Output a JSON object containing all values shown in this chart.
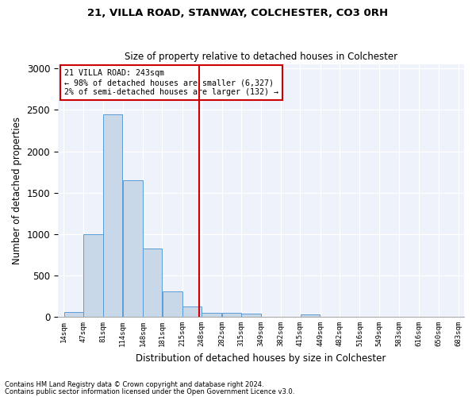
{
  "title1": "21, VILLA ROAD, STANWAY, COLCHESTER, CO3 0RH",
  "title2": "Size of property relative to detached houses in Colchester",
  "xlabel": "Distribution of detached houses by size in Colchester",
  "ylabel": "Number of detached properties",
  "footnote1": "Contains HM Land Registry data © Crown copyright and database right 2024.",
  "footnote2": "Contains public sector information licensed under the Open Government Licence v3.0.",
  "annotation_line1": "21 VILLA ROAD: 243sqm",
  "annotation_line2": "← 98% of detached houses are smaller (6,327)",
  "annotation_line3": "2% of semi-detached houses are larger (132) →",
  "property_size": 243,
  "bar_color": "#c8d8e8",
  "bar_edge_color": "#5b9bd5",
  "vline_color": "#cc0000",
  "annotation_box_color": "#cc0000",
  "background_color": "#eef2fb",
  "bin_edges": [
    14,
    47,
    81,
    114,
    148,
    181,
    215,
    248,
    282,
    315,
    349,
    382,
    415,
    449,
    482,
    516,
    549,
    583,
    616,
    650,
    683
  ],
  "bar_heights": [
    60,
    1000,
    2450,
    1650,
    830,
    305,
    130,
    50,
    45,
    35,
    5,
    0,
    30,
    0,
    0,
    0,
    0,
    0,
    0,
    0
  ],
  "ylim": [
    0,
    3050
  ],
  "yticks": [
    0,
    500,
    1000,
    1500,
    2000,
    2500,
    3000
  ]
}
